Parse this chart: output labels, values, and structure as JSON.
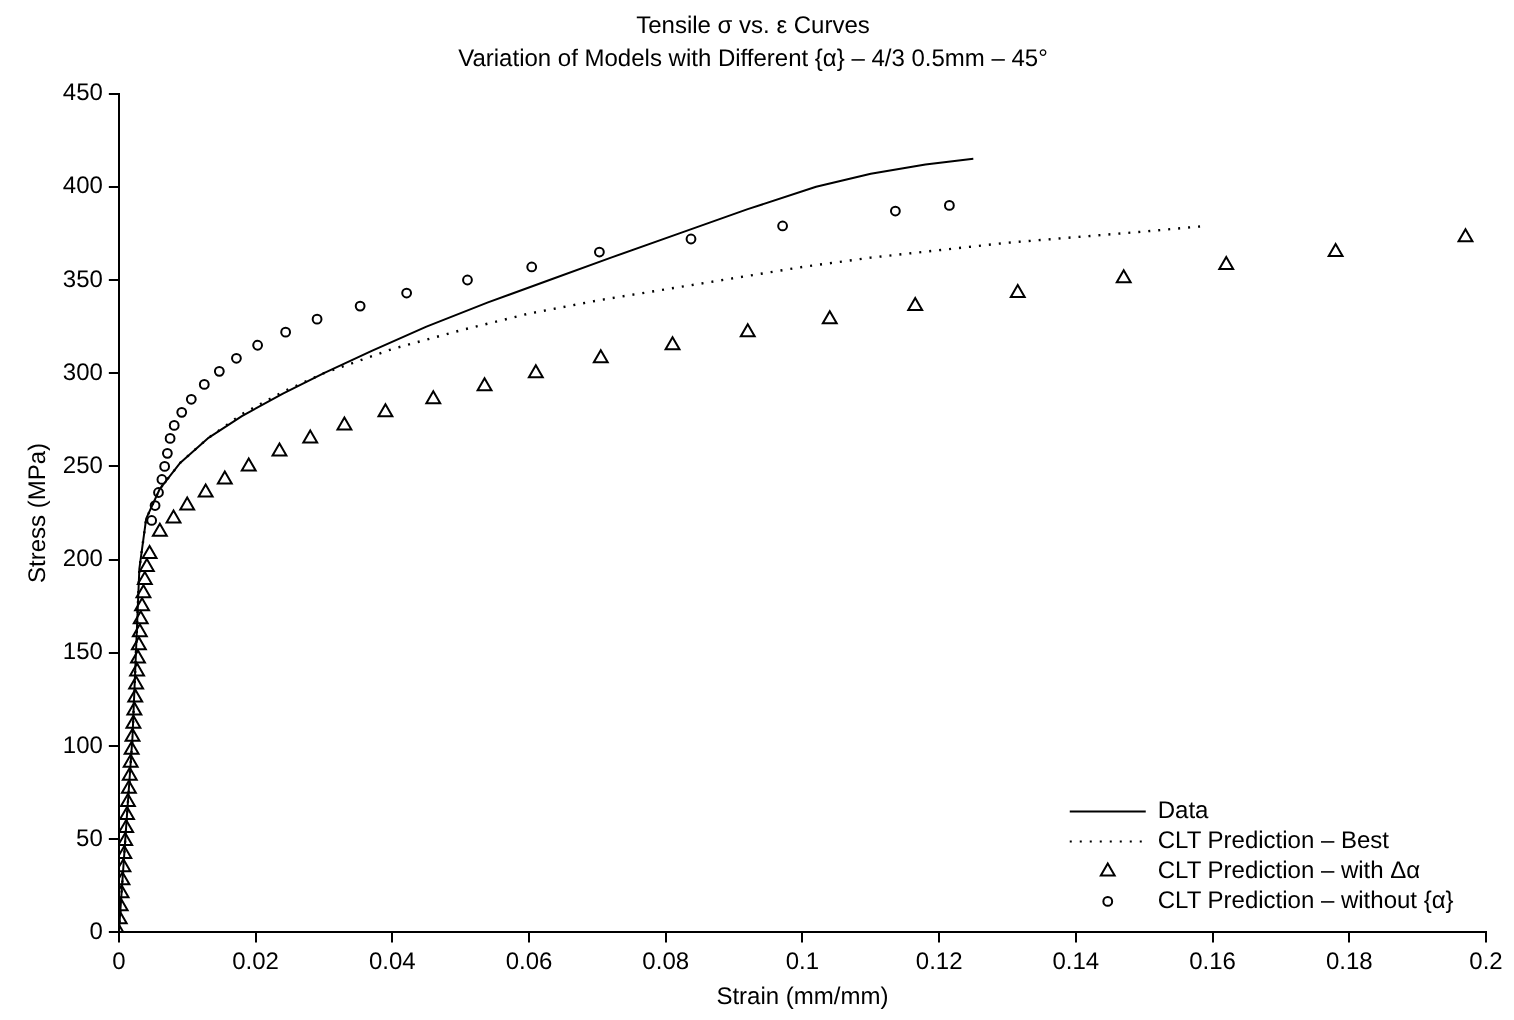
{
  "chart_data": {
    "type": "line",
    "title": "Tensile σ vs. ε Curves",
    "subtitle": "Variation of Models with Different {α} – 4/3 0.5mm – 45°",
    "xlabel": "Strain (mm/mm)",
    "ylabel": "Stress (MPa)",
    "xlim": [
      0,
      0.2
    ],
    "xticks": [
      0,
      0.02,
      0.04,
      0.06,
      0.08,
      0.1,
      0.12,
      0.14,
      0.16,
      0.18,
      0.2
    ],
    "ylim": [
      0,
      450
    ],
    "yticks": [
      0,
      50,
      100,
      150,
      200,
      250,
      300,
      350,
      400,
      450
    ],
    "grid": false,
    "legend": "bottom right",
    "series": [
      {
        "name": "Data",
        "type": "line",
        "color": "#000000",
        "line_style": "solid",
        "marker": "none",
        "x": [
          0,
          0.001,
          0.002,
          0.003,
          0.004,
          0.006,
          0.009,
          0.013,
          0.018,
          0.024,
          0.03,
          0.037,
          0.045,
          0.054,
          0.063,
          0.072,
          0.082,
          0.092,
          0.102,
          0.11,
          0.118,
          0.125
        ],
        "values": [
          0,
          53,
          105,
          195,
          222,
          238,
          252,
          265,
          277,
          289,
          300,
          312,
          325,
          338,
          350,
          362,
          375,
          388,
          400,
          407,
          412,
          415
        ]
      },
      {
        "name": "CLT Prediction – Best",
        "type": "line",
        "color": "#000000",
        "line_style": "dotted",
        "marker": "none",
        "x": [
          0,
          0.001,
          0.002,
          0.003,
          0.004,
          0.006,
          0.009,
          0.013,
          0.018,
          0.024,
          0.03,
          0.04,
          0.05,
          0.06,
          0.07,
          0.08,
          0.09,
          0.1,
          0.11,
          0.12,
          0.13,
          0.14,
          0.15,
          0.159
        ],
        "values": [
          0,
          53,
          105,
          195,
          222,
          238,
          252,
          265,
          278,
          290,
          300,
          313,
          323,
          332,
          339,
          345,
          351,
          357,
          362,
          366,
          370,
          373,
          376,
          379
        ]
      },
      {
        "name": "CLT Prediction – with Δα",
        "type": "scatter",
        "color": "#000000",
        "marker": "triangle",
        "x": [
          0,
          0.00013,
          0.00027,
          0.0004,
          0.00053,
          0.00067,
          0.0008,
          0.00093,
          0.00107,
          0.0012,
          0.00133,
          0.00147,
          0.0016,
          0.00173,
          0.00187,
          0.002,
          0.00213,
          0.00227,
          0.0024,
          0.00253,
          0.00267,
          0.0028,
          0.00293,
          0.00307,
          0.0032,
          0.0034,
          0.0036,
          0.0038,
          0.0041,
          0.0045,
          0.006,
          0.008,
          0.01,
          0.0127,
          0.0155,
          0.019,
          0.0235,
          0.028,
          0.033,
          0.039,
          0.046,
          0.0535,
          0.061,
          0.0705,
          0.081,
          0.092,
          0.104,
          0.1165,
          0.1315,
          0.147,
          0.162,
          0.178,
          0.197
        ],
        "values": [
          0,
          7,
          14,
          21,
          28,
          35,
          42,
          49,
          56,
          63,
          70,
          77,
          84,
          91,
          98,
          105,
          112,
          119,
          126,
          133,
          140,
          147,
          154,
          161,
          168,
          175,
          182,
          189,
          196,
          203,
          215,
          222,
          229,
          236,
          243,
          250,
          258,
          265,
          272,
          279,
          286,
          293,
          300,
          308,
          315,
          322,
          329,
          336,
          343,
          351,
          358,
          365,
          373
        ]
      },
      {
        "name": "CLT Prediction – without {α}",
        "type": "scatter",
        "color": "#000000",
        "marker": "circle",
        "x": [
          0.0048,
          0.0053,
          0.0058,
          0.0063,
          0.0067,
          0.0071,
          0.0075,
          0.0081,
          0.0092,
          0.0106,
          0.0125,
          0.0147,
          0.0172,
          0.0203,
          0.0244,
          0.029,
          0.0353,
          0.0421,
          0.051,
          0.0604,
          0.0703,
          0.0837,
          0.0971,
          0.1136,
          0.1215
        ],
        "values": [
          221,
          229,
          236,
          243,
          250,
          257,
          265,
          272,
          279,
          286,
          294,
          301,
          308,
          315,
          322,
          329,
          336,
          343,
          350,
          357,
          365,
          372,
          379,
          387,
          390
        ]
      }
    ]
  }
}
